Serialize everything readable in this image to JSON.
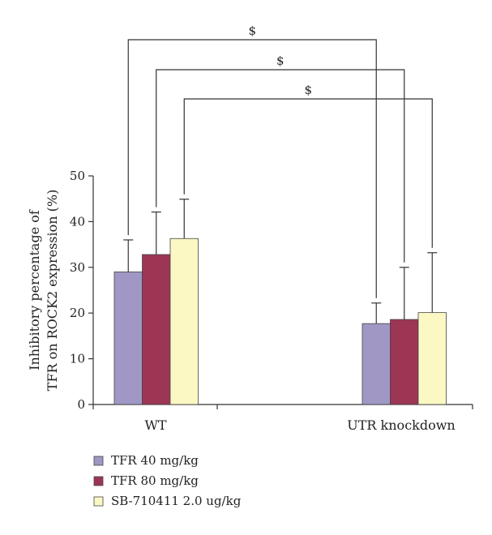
{
  "chart_data": {
    "type": "bar",
    "ylabel": "Inhibitory percentage of TFR on ROCK2 expression (%)",
    "ylabel_lines": [
      "Inhibitory percentage of",
      "TFR on ROCK2 expression (%)"
    ],
    "ylim": [
      0,
      50
    ],
    "yticks": [
      0,
      10,
      20,
      30,
      40,
      50
    ],
    "grid": false,
    "legend_position": "bottom-left",
    "categories": [
      "WT",
      "UTR knockdown"
    ],
    "series": [
      {
        "name": "TFR 40 mg/kg",
        "color": "#a097c5",
        "values": [
          29,
          17.7
        ],
        "errors": [
          7,
          4.5
        ]
      },
      {
        "name": "TFR 80 mg/kg",
        "color": "#9c3654",
        "values": [
          32.8,
          18.6
        ],
        "errors": [
          9.3,
          11.4
        ]
      },
      {
        "name": "SB-710411 2.0 ug/kg",
        "color": "#fbf8c4",
        "values": [
          36.3,
          20.1
        ],
        "errors": [
          8.6,
          13.1
        ]
      }
    ],
    "significance": [
      {
        "label": "$",
        "series_index": 0
      },
      {
        "label": "$",
        "series_index": 1
      },
      {
        "label": "$",
        "series_index": 2
      }
    ]
  }
}
